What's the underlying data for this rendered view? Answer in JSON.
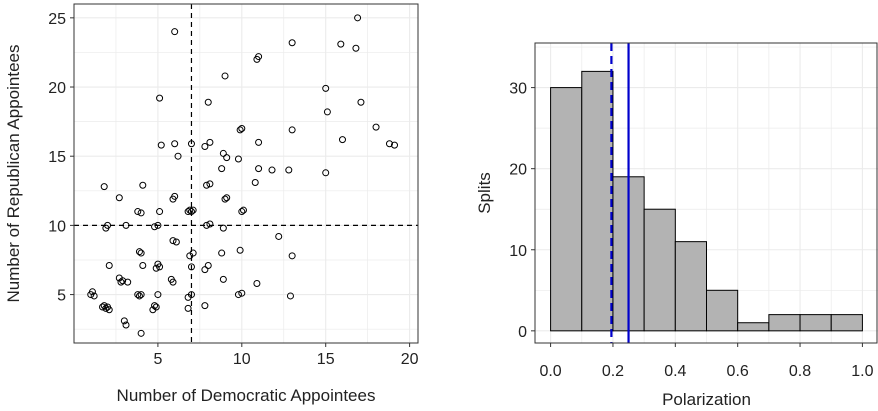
{
  "chart_data": [
    {
      "type": "scatter",
      "title": "",
      "xlabel": "Number of Democratic Appointees",
      "ylabel": "Number of Republican Appointees",
      "xlim": [
        0,
        20.5
      ],
      "ylim": [
        1.5,
        26
      ],
      "x_ticks": [
        5,
        10,
        15,
        20
      ],
      "y_ticks": [
        5,
        10,
        15,
        20,
        25
      ],
      "grid": true,
      "reference_lines": {
        "vertical_x": 7,
        "horizontal_y": 10,
        "style": "dashed",
        "color": "#000000"
      },
      "marker": "open-circle",
      "points": [
        [
          1,
          5
        ],
        [
          1.1,
          5.2
        ],
        [
          1.2,
          4.9
        ],
        [
          1.7,
          4.1
        ],
        [
          1.8,
          4.2
        ],
        [
          1.9,
          4.0
        ],
        [
          2.0,
          4.1
        ],
        [
          2.1,
          3.9
        ],
        [
          1.8,
          12.8
        ],
        [
          1.9,
          9.8
        ],
        [
          2.0,
          10.0
        ],
        [
          2.1,
          7.1
        ],
        [
          2.7,
          6.2
        ],
        [
          2.8,
          5.9
        ],
        [
          2.7,
          12.0
        ],
        [
          2.9,
          6.0
        ],
        [
          3.0,
          3.1
        ],
        [
          3.1,
          2.8
        ],
        [
          3.2,
          5.9
        ],
        [
          3.1,
          10.0
        ],
        [
          3.8,
          5.0
        ],
        [
          3.9,
          4.9
        ],
        [
          4.0,
          5.0
        ],
        [
          3.9,
          8.1
        ],
        [
          4.0,
          8.0
        ],
        [
          3.8,
          11.0
        ],
        [
          4.0,
          10.9
        ],
        [
          4.1,
          12.9
        ],
        [
          4.0,
          2.2
        ],
        [
          4.1,
          7.1
        ],
        [
          4.7,
          3.9
        ],
        [
          4.8,
          4.2
        ],
        [
          4.9,
          4.1
        ],
        [
          4.9,
          6.9
        ],
        [
          5.0,
          7.2
        ],
        [
          5.1,
          7.0
        ],
        [
          4.8,
          9.9
        ],
        [
          5.0,
          10.0
        ],
        [
          5.1,
          11.0
        ],
        [
          5.2,
          15.8
        ],
        [
          5.1,
          19.2
        ],
        [
          5.0,
          5.0
        ],
        [
          5.8,
          6.1
        ],
        [
          5.9,
          5.9
        ],
        [
          5.9,
          8.9
        ],
        [
          6.1,
          8.8
        ],
        [
          6.0,
          12.1
        ],
        [
          5.9,
          11.9
        ],
        [
          6.0,
          15.9
        ],
        [
          6.2,
          15.0
        ],
        [
          6.0,
          24.0
        ],
        [
          6.8,
          4.8
        ],
        [
          6.8,
          11.0
        ],
        [
          6.9,
          11.1
        ],
        [
          7.0,
          11.0
        ],
        [
          7.1,
          11.1
        ],
        [
          6.9,
          7.8
        ],
        [
          7.0,
          7.0
        ],
        [
          7.1,
          8.0
        ],
        [
          7.0,
          5.0
        ],
        [
          6.8,
          4.0
        ],
        [
          7.0,
          15.9
        ],
        [
          7.8,
          4.2
        ],
        [
          7.8,
          6.8
        ],
        [
          8.0,
          7.1
        ],
        [
          7.9,
          10.0
        ],
        [
          8.1,
          10.1
        ],
        [
          7.9,
          12.9
        ],
        [
          8.1,
          13.0
        ],
        [
          7.8,
          15.7
        ],
        [
          8.1,
          16.0
        ],
        [
          8.0,
          18.9
        ],
        [
          8.9,
          6.1
        ],
        [
          8.8,
          8.0
        ],
        [
          8.9,
          9.8
        ],
        [
          9.0,
          11.9
        ],
        [
          9.1,
          12.0
        ],
        [
          9.1,
          14.9
        ],
        [
          8.9,
          15.2
        ],
        [
          9.0,
          20.8
        ],
        [
          8.8,
          14.1
        ],
        [
          9.8,
          5.0
        ],
        [
          10.0,
          5.1
        ],
        [
          9.9,
          8.2
        ],
        [
          10.0,
          11.0
        ],
        [
          10.1,
          11.1
        ],
        [
          9.8,
          14.8
        ],
        [
          9.9,
          16.9
        ],
        [
          10.0,
          17.0
        ],
        [
          10.9,
          5.8
        ],
        [
          10.8,
          13.1
        ],
        [
          11.0,
          16.0
        ],
        [
          10.9,
          22.0
        ],
        [
          11.0,
          22.2
        ],
        [
          11.0,
          14.1
        ],
        [
          11.8,
          14.0
        ],
        [
          12.2,
          9.2
        ],
        [
          12.9,
          4.9
        ],
        [
          13.0,
          7.8
        ],
        [
          12.8,
          14.0
        ],
        [
          13.0,
          16.9
        ],
        [
          13.0,
          23.2
        ],
        [
          15.0,
          13.8
        ],
        [
          15.1,
          18.2
        ],
        [
          15.0,
          19.9
        ],
        [
          15.9,
          23.1
        ],
        [
          16.0,
          16.2
        ],
        [
          16.8,
          22.8
        ],
        [
          16.9,
          25.0
        ],
        [
          17.1,
          18.9
        ],
        [
          18.0,
          17.1
        ],
        [
          18.8,
          15.9
        ],
        [
          19.1,
          15.8
        ]
      ]
    },
    {
      "type": "bar",
      "subtype": "histogram",
      "title": "",
      "xlabel": "Polarization",
      "ylabel": "Splits",
      "xlim": [
        -0.05,
        1.05
      ],
      "ylim": [
        -1.5,
        35.5
      ],
      "x_ticks": [
        "0.0",
        "0.2",
        "0.4",
        "0.6",
        "0.8",
        "1.0"
      ],
      "y_ticks": [
        "0",
        "10",
        "20",
        "30"
      ],
      "grid": true,
      "bin_width": 0.1,
      "bins": [
        0.0,
        0.1,
        0.2,
        0.3,
        0.4,
        0.5,
        0.6,
        0.7,
        0.8,
        0.9
      ],
      "values": [
        30,
        32,
        19,
        15,
        11,
        5,
        1,
        2,
        2,
        2
      ],
      "bar_color": "#b3b3b3",
      "reference_lines": [
        {
          "x": 0.195,
          "style": "dashed",
          "color": "#0000cc"
        },
        {
          "x": 0.25,
          "style": "solid",
          "color": "#0000cc"
        }
      ]
    }
  ]
}
